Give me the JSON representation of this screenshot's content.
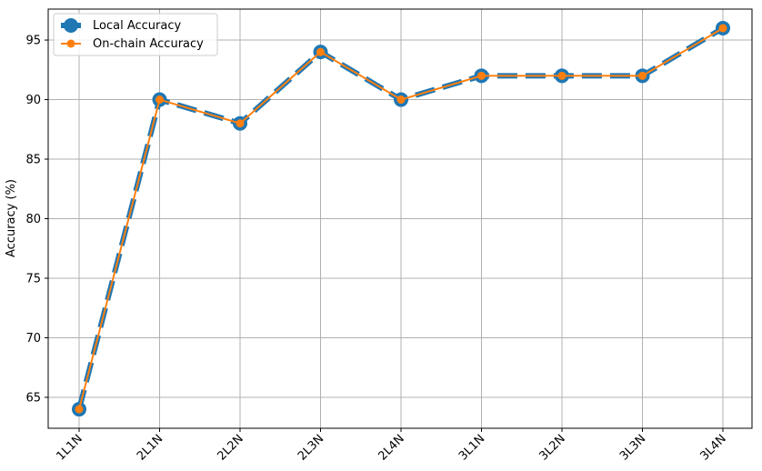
{
  "chart_data": {
    "type": "line",
    "title": "",
    "xlabel": "",
    "ylabel": "Accuracy (%)",
    "categories": [
      "1L1N",
      "2L1N",
      "2L2N",
      "2L3N",
      "2L4N",
      "3L1N",
      "3L2N",
      "3L3N",
      "3L4N"
    ],
    "ylim": [
      62.4,
      97.6
    ],
    "yticks": [
      65,
      70,
      75,
      80,
      85,
      90,
      95
    ],
    "grid": true,
    "legend_position": "upper-left",
    "series": [
      {
        "name": "Local Accuracy",
        "values": [
          64,
          90,
          88,
          94,
          90,
          92,
          92,
          92,
          96
        ],
        "color": "#1f77b4",
        "line_style": "dashed",
        "marker": "circle"
      },
      {
        "name": "On-chain Accuracy",
        "values": [
          64,
          90,
          88,
          94,
          90,
          92,
          92,
          92,
          96
        ],
        "color": "#ff7f0e",
        "line_style": "solid",
        "marker": "circle"
      }
    ]
  }
}
